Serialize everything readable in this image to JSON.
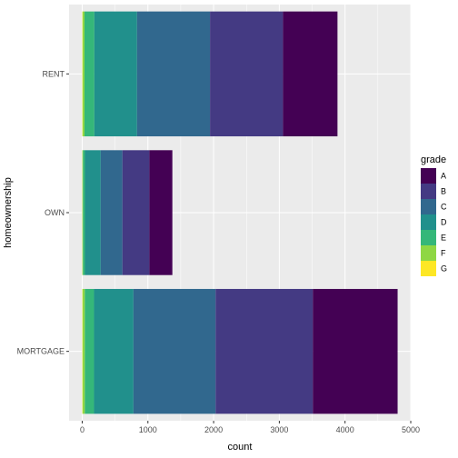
{
  "chart_data": {
    "type": "bar",
    "orientation": "horizontal",
    "stacked": true,
    "categories": [
      "MORTGAGE",
      "OWN",
      "RENT"
    ],
    "series": [
      {
        "name": "A",
        "color": "#440154",
        "values": [
          1290,
          350,
          830
        ]
      },
      {
        "name": "B",
        "color": "#443A83",
        "values": [
          1480,
          410,
          1110
        ]
      },
      {
        "name": "C",
        "color": "#31688E",
        "values": [
          1250,
          330,
          1110
        ]
      },
      {
        "name": "D",
        "color": "#21908C",
        "values": [
          600,
          240,
          650
        ]
      },
      {
        "name": "E",
        "color": "#35B779",
        "values": [
          140,
          30,
          150
        ]
      },
      {
        "name": "F",
        "color": "#8FD744",
        "values": [
          35,
          10,
          30
        ]
      },
      {
        "name": "G",
        "color": "#FDE725",
        "values": [
          5,
          2,
          5
        ]
      }
    ],
    "xlabel": "count",
    "ylabel": "homeownership",
    "xlim": [
      -200,
      5000
    ],
    "xticks": [
      0,
      1000,
      2000,
      3000,
      4000,
      5000
    ],
    "legend_title": "grade",
    "legend_position": "right",
    "grid": true,
    "panel_background": "#EBEBEB",
    "grid_color": "#FFFFFF"
  }
}
